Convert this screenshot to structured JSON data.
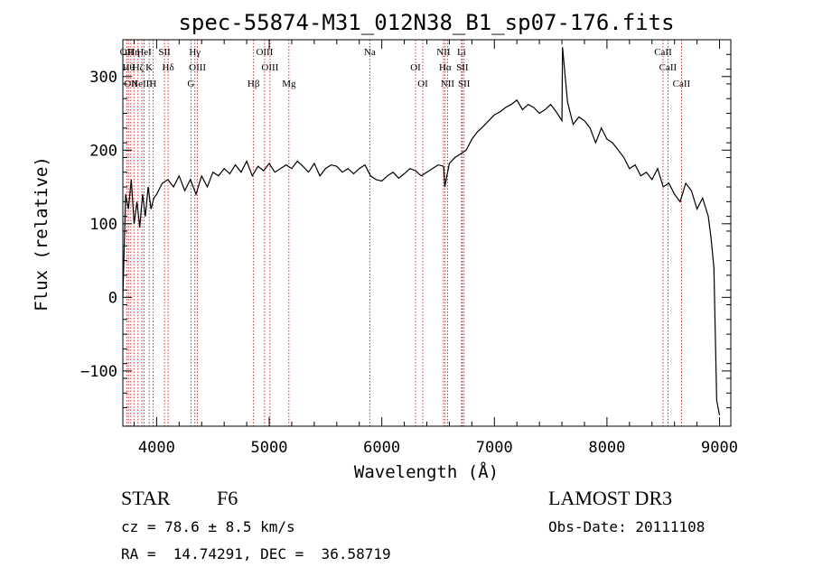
{
  "chart_data": {
    "type": "line",
    "title": "spec-55874-M31_012N38_B1_sp07-176.fits",
    "xlabel": "Wavelength (Å)",
    "ylabel": "Flux (relative)",
    "xlim": [
      3700,
      9100
    ],
    "ylim": [
      -175,
      350
    ],
    "x_ticks": [
      4000,
      5000,
      6000,
      7000,
      8000,
      9000
    ],
    "y_ticks": [
      -100,
      0,
      100,
      200,
      300
    ],
    "x_tick_labels": [
      "4000",
      "5000",
      "6000",
      "7000",
      "8000",
      "9000"
    ],
    "y_tick_labels": [
      "−100",
      "0",
      "100",
      "200",
      "300"
    ],
    "series": [
      {
        "x": [
          3700,
          3725,
          3750,
          3775,
          3800,
          3825,
          3850,
          3875,
          3900,
          3925,
          3950,
          3975,
          4000,
          4050,
          4100,
          4150,
          4200,
          4250,
          4300,
          4350,
          4400,
          4450,
          4500,
          4550,
          4600,
          4650,
          4700,
          4750,
          4800,
          4850,
          4900,
          4950,
          5000,
          5050,
          5100,
          5150,
          5200,
          5250,
          5300,
          5350,
          5400,
          5450,
          5500,
          5550,
          5600,
          5650,
          5700,
          5750,
          5800,
          5850,
          5900,
          5950,
          6000,
          6050,
          6100,
          6150,
          6200,
          6250,
          6300,
          6350,
          6400,
          6450,
          6500,
          6550,
          6560,
          6600,
          6650,
          6700,
          6750,
          6800,
          6850,
          6900,
          6950,
          7000,
          7050,
          7100,
          7150,
          7200,
          7250,
          7300,
          7350,
          7400,
          7450,
          7500,
          7550,
          7600,
          7605,
          7650,
          7700,
          7750,
          7800,
          7850,
          7900,
          7950,
          8000,
          8050,
          8100,
          8150,
          8200,
          8250,
          8300,
          8350,
          8400,
          8450,
          8500,
          8550,
          8600,
          8650,
          8700,
          8750,
          8800,
          8850,
          8900,
          8925,
          8950,
          8975,
          9000
        ],
        "y": [
          0,
          140,
          120,
          160,
          100,
          130,
          95,
          140,
          110,
          150,
          120,
          135,
          140,
          155,
          160,
          150,
          165,
          145,
          160,
          140,
          165,
          150,
          170,
          165,
          175,
          168,
          180,
          170,
          185,
          165,
          178,
          172,
          182,
          170,
          175,
          180,
          175,
          185,
          178,
          170,
          182,
          165,
          175,
          180,
          178,
          170,
          175,
          168,
          175,
          180,
          165,
          160,
          158,
          165,
          170,
          162,
          168,
          175,
          172,
          165,
          170,
          175,
          180,
          178,
          150,
          182,
          190,
          195,
          200,
          215,
          225,
          232,
          240,
          248,
          252,
          258,
          262,
          268,
          255,
          262,
          258,
          250,
          255,
          262,
          252,
          240,
          340,
          265,
          235,
          245,
          240,
          230,
          210,
          230,
          215,
          210,
          200,
          190,
          175,
          180,
          165,
          170,
          160,
          175,
          150,
          155,
          140,
          130,
          155,
          145,
          120,
          135,
          110,
          80,
          40,
          -140,
          -160
        ]
      }
    ],
    "lines": [
      {
        "w": 3734,
        "label": "OII"
      },
      {
        "w": 3750,
        "label": "Hθ"
      },
      {
        "w": 3771,
        "label": "OII"
      },
      {
        "w": 3798,
        "label": "Hη"
      },
      {
        "w": 3835,
        "label": "Hζ"
      },
      {
        "w": 3869,
        "label": "NeIII"
      },
      {
        "w": 3889,
        "label": "HeI"
      },
      {
        "w": 3934,
        "label": "K"
      },
      {
        "w": 3968,
        "label": "H"
      },
      {
        "w": 4070,
        "label": "SII"
      },
      {
        "w": 4102,
        "label": "Hδ"
      },
      {
        "w": 4305,
        "label": "G"
      },
      {
        "w": 4340,
        "label": "Hγ"
      },
      {
        "w": 4363,
        "label": "OIII"
      },
      {
        "w": 4861,
        "label": "Hβ"
      },
      {
        "w": 4959,
        "label": "OIII"
      },
      {
        "w": 5007,
        "label": "OIII"
      },
      {
        "w": 5175,
        "label": "Mg"
      },
      {
        "w": 5893,
        "label": "Na"
      },
      {
        "w": 6300,
        "label": "OI"
      },
      {
        "w": 6364,
        "label": "OI"
      },
      {
        "w": 6548,
        "label": "NII"
      },
      {
        "w": 6563,
        "label": "Hα"
      },
      {
        "w": 6584,
        "label": "NII"
      },
      {
        "w": 6708,
        "label": "Li"
      },
      {
        "w": 6716,
        "label": "SII"
      },
      {
        "w": 6731,
        "label": "SII"
      },
      {
        "w": 8498,
        "label": "CaII"
      },
      {
        "w": 8542,
        "label": "CaII"
      },
      {
        "w": 8662,
        "label": "CaII"
      }
    ],
    "grid": false,
    "legend": "none",
    "line_marker_color": "#c00000"
  },
  "info": {
    "object_class": "STAR",
    "subclass": "F6",
    "survey": "LAMOST DR3",
    "cz": "cz = 78.6 ± 8.5 km/s",
    "obs_date": "Obs-Date: 20111108",
    "coords": "RA =  14.74291, DEC =  36.58719"
  }
}
